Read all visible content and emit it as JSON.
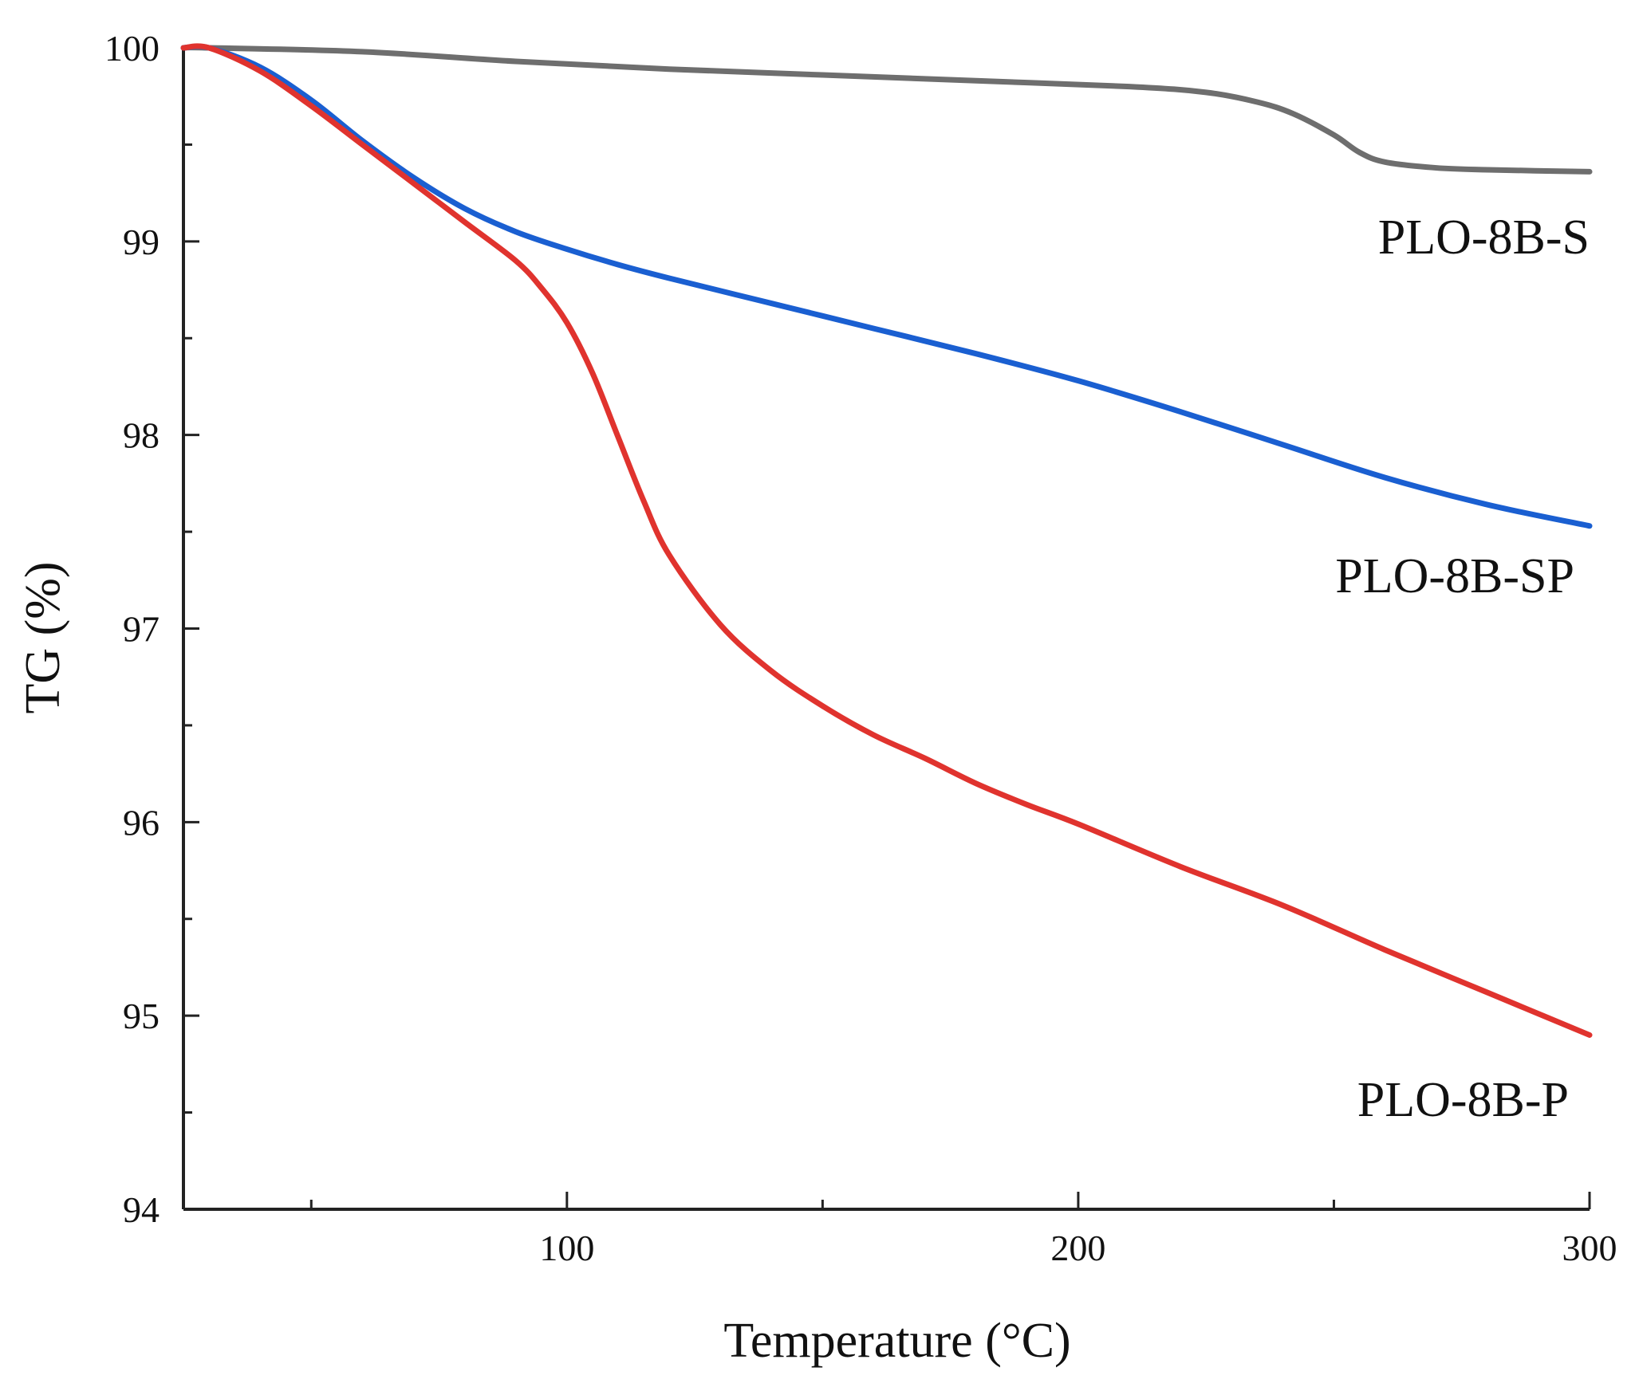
{
  "chart_data": {
    "type": "line",
    "title": "",
    "xlabel": "Temperature (°C)",
    "ylabel": "TG (%)",
    "xlim": [
      25,
      300
    ],
    "ylim": [
      94,
      100
    ],
    "x_major_ticks": [
      100,
      200,
      300
    ],
    "x_minor_ticks": [
      50,
      150,
      250
    ],
    "y_major_ticks": [
      94,
      95,
      96,
      97,
      98,
      99,
      100
    ],
    "y_minor_ticks": [
      94.5,
      95.5,
      96.5,
      97.5,
      98.5,
      99.5
    ],
    "grid": false,
    "series": [
      {
        "name": "PLO-8B-S",
        "color": "#6e6e6e",
        "x": [
          25,
          30,
          60,
          90,
          120,
          150,
          180,
          210,
          225,
          235,
          242,
          250,
          255,
          260,
          270,
          280,
          300
        ],
        "y": [
          100.0,
          100.0,
          99.98,
          99.93,
          99.89,
          99.86,
          99.83,
          99.8,
          99.77,
          99.72,
          99.66,
          99.55,
          99.46,
          99.41,
          99.38,
          99.37,
          99.36
        ]
      },
      {
        "name": "PLO-8B-SP",
        "color": "#1a5fd1",
        "x": [
          25,
          30,
          40,
          50,
          60,
          70,
          80,
          90,
          100,
          110,
          120,
          140,
          160,
          180,
          200,
          220,
          240,
          260,
          280,
          300
        ],
        "y": [
          100.0,
          100.0,
          99.9,
          99.73,
          99.52,
          99.33,
          99.17,
          99.05,
          98.96,
          98.88,
          98.81,
          98.68,
          98.55,
          98.42,
          98.28,
          98.12,
          97.95,
          97.78,
          97.64,
          97.53
        ]
      },
      {
        "name": "PLO-8B-P",
        "color": "#e0332e",
        "x": [
          25,
          30,
          40,
          50,
          60,
          70,
          80,
          90,
          95,
          100,
          105,
          110,
          115,
          120,
          130,
          140,
          150,
          160,
          170,
          180,
          190,
          200,
          220,
          240,
          260,
          280,
          300
        ],
        "y": [
          100.0,
          100.0,
          99.88,
          99.7,
          99.5,
          99.3,
          99.1,
          98.9,
          98.76,
          98.58,
          98.32,
          97.99,
          97.66,
          97.38,
          97.02,
          96.78,
          96.6,
          96.45,
          96.33,
          96.2,
          96.09,
          95.99,
          95.77,
          95.57,
          95.34,
          95.12,
          94.9
        ]
      }
    ],
    "annotations": [
      {
        "text": "PLO-8B-S",
        "series": "PLO-8B-S"
      },
      {
        "text": "PLO-8B-SP",
        "series": "PLO-8B-SP"
      },
      {
        "text": "PLO-8B-P",
        "series": "PLO-8B-P"
      }
    ]
  }
}
